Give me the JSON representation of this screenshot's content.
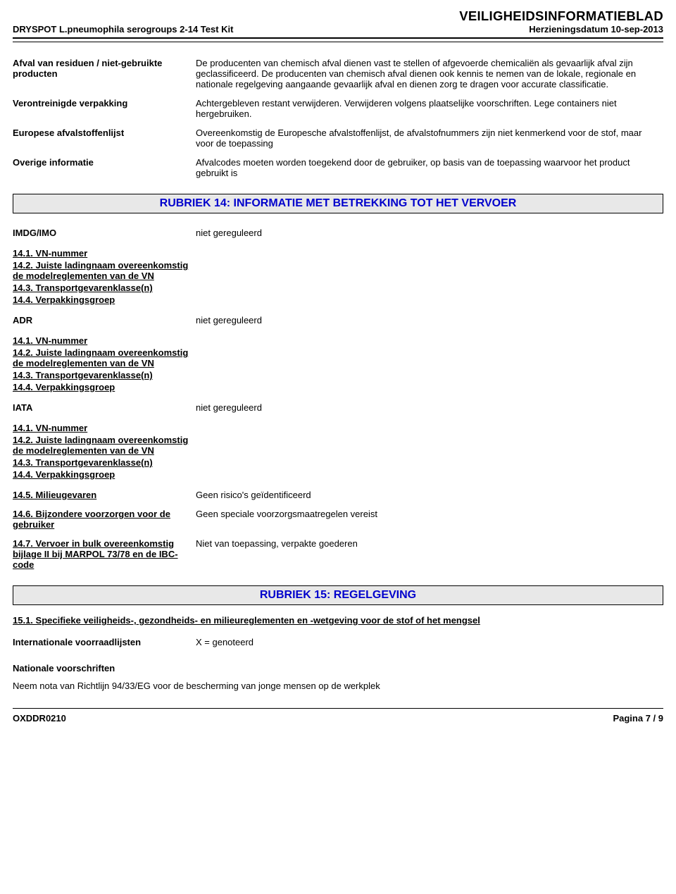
{
  "header": {
    "product": "DRYSPOT L.pneumophila serogroups 2-14 Test Kit",
    "title": "VEILIGHEIDSINFORMATIEBLAD",
    "revision_label": "Herzieningsdatum",
    "revision_date": "10-sep-2013"
  },
  "disposal": [
    {
      "label": "Afval van residuen / niet-gebruikte producten",
      "value": "De producenten van chemisch afval dienen vast te stellen of  afgevoerde chemicaliën als gevaarlijk afval zijn geclassificeerd. De producenten van chemisch afval dienen ook kennis te nemen van de lokale, regionale en nationale regelgeving aangaande gevaarlijk afval en dienen zorg te dragen voor accurate classificatie."
    },
    {
      "label": "Verontreinigde verpakking",
      "value": "Achtergebleven restant verwijderen. Verwijderen volgens plaatselijke voorschriften. Lege containers niet hergebruiken."
    },
    {
      "label": "Europese afvalstoffenlijst",
      "value": "Overeenkomstig de Europesche afvalstoffenlijst, de afvalstofnummers zijn niet kenmerkend voor de stof, maar voor de toepassing"
    },
    {
      "label": "Overige informatie",
      "value": "Afvalcodes moeten worden toegekend door de gebruiker, op basis van de toepassing waarvoor het product gebruikt is"
    }
  ],
  "section14": {
    "heading": "RUBRIEK 14: INFORMATIE MET BETREKKING TOT HET VERVOER",
    "modes": [
      {
        "label": "IMDG/IMO",
        "value": "niet gereguleerd"
      },
      {
        "label": "ADR",
        "value": "niet gereguleerd"
      },
      {
        "label": "IATA",
        "value": "niet gereguleerd"
      }
    ],
    "items": [
      "14.1. VN-nummer",
      "14.2. Juiste ladingnaam overeenkomstig de modelreglementen van de VN",
      "14.3. Transportgevarenklasse(n)",
      "14.4. Verpakkingsgroep"
    ],
    "extra": [
      {
        "label": "14.5. Milieugevaren",
        "value": "Geen risico's geïdentificeerd"
      },
      {
        "label": "14.6. Bijzondere voorzorgen voor de gebruiker",
        "value": "Geen speciale voorzorgsmaatregelen vereist"
      },
      {
        "label": "14.7. Vervoer in bulk overeenkomstig bijlage II bij MARPOL 73/78 en de IBC-code",
        "value": "Niet van toepassing, verpakte goederen"
      }
    ]
  },
  "section15": {
    "heading": "RUBRIEK 15: REGELGEVING",
    "sub": "15.1. Specifieke veiligheids-, gezondheids- en milieureglementen en -wetgeving voor de stof of het mengsel",
    "rows": [
      {
        "label": "Internationale voorraadlijsten",
        "value": "X = genoteerd"
      }
    ],
    "national_label": "Nationale voorschriften",
    "note": "Neem nota van Richtlijn 94/33/EG voor de bescherming van jonge mensen op de werkplek"
  },
  "footer": {
    "code": "OXDDR0210",
    "page": "Pagina  7 / 9"
  }
}
